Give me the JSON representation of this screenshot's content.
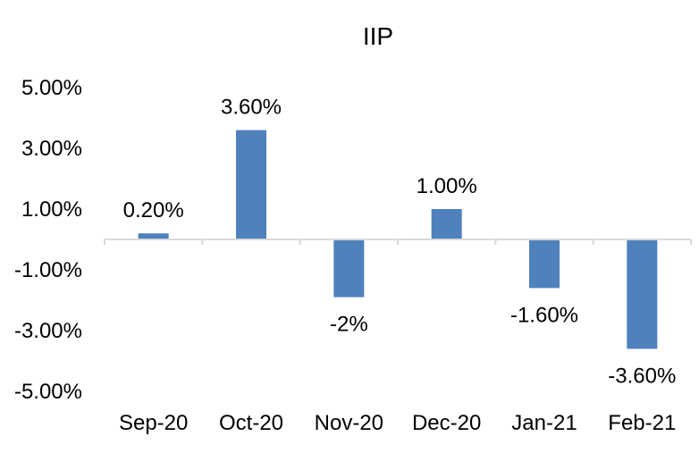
{
  "chart_data": {
    "type": "bar",
    "title": "IIP",
    "xlabel": "",
    "ylabel": "",
    "categories": [
      "Sep-20",
      "Oct-20",
      "Nov-20",
      "Dec-20",
      "Jan-21",
      "Feb-21"
    ],
    "values": [
      0.2,
      3.6,
      -1.9,
      1.0,
      -1.6,
      -3.6
    ],
    "data_labels": [
      "0.20%",
      "3.60%",
      "-2%",
      "1.00%",
      "-1.60%",
      "-3.60%"
    ],
    "yticks": [
      5,
      3,
      1,
      -1,
      -3,
      -5
    ],
    "ytick_labels": [
      "5.00%",
      "3.00%",
      "1.00%",
      "-1.00%",
      "-3.00%",
      "-5.00%"
    ],
    "ylim": [
      -5,
      5
    ],
    "grid": false,
    "legend": "none",
    "colors": {
      "bar": "#4f81bd",
      "axis": "#d9d9d9",
      "text": "#000000"
    }
  }
}
